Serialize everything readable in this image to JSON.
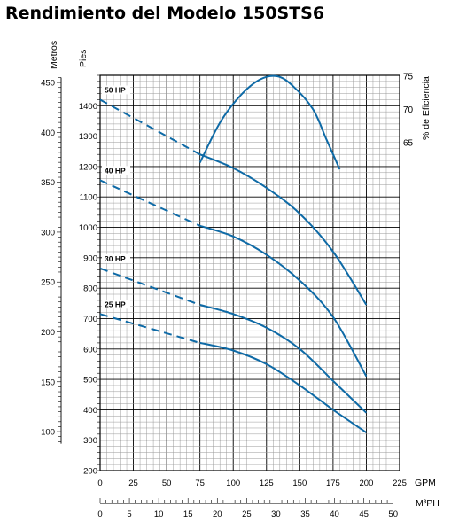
{
  "chart_data": {
    "type": "line",
    "title": "Rendimiento del Modelo 150STS6",
    "left_axis_labels": {
      "meters": "Metros",
      "feet": "Pies"
    },
    "right_axis_label": "% de Eficiencia",
    "x_labels": {
      "gpm": "GPM",
      "m3ph": "M³PH"
    },
    "x_gpm_range": [
      0,
      225
    ],
    "x_gpm_ticks": [
      0,
      25,
      50,
      75,
      100,
      125,
      150,
      175,
      200,
      225
    ],
    "x_m3ph_ticks": [
      0,
      5,
      10,
      15,
      20,
      25,
      30,
      35,
      40,
      45,
      50
    ],
    "y_feet_range": [
      200,
      1500
    ],
    "y_feet_ticks": [
      200,
      300,
      400,
      500,
      600,
      700,
      800,
      900,
      1000,
      1100,
      1200,
      1300,
      1400
    ],
    "y_meters_ticks": [
      100,
      150,
      200,
      250,
      300,
      350,
      400,
      450
    ],
    "efficiency_ticks": [
      65,
      70,
      75
    ],
    "grid": true,
    "series": [
      {
        "name": "50 HP",
        "dashed": [
          [
            0,
            1420
          ],
          [
            75,
            1240
          ]
        ],
        "solid": [
          [
            75,
            1240
          ],
          [
            100,
            1195
          ],
          [
            125,
            1130
          ],
          [
            150,
            1045
          ],
          [
            175,
            920
          ],
          [
            200,
            745
          ]
        ]
      },
      {
        "name": "40 HP",
        "dashed": [
          [
            0,
            1155
          ],
          [
            75,
            1005
          ]
        ],
        "solid": [
          [
            75,
            1005
          ],
          [
            100,
            970
          ],
          [
            125,
            910
          ],
          [
            150,
            825
          ],
          [
            175,
            705
          ],
          [
            200,
            510
          ]
        ]
      },
      {
        "name": "30 HP",
        "dashed": [
          [
            0,
            865
          ],
          [
            75,
            745
          ]
        ],
        "solid": [
          [
            75,
            745
          ],
          [
            100,
            715
          ],
          [
            125,
            670
          ],
          [
            150,
            600
          ],
          [
            175,
            495
          ],
          [
            200,
            390
          ]
        ]
      },
      {
        "name": "25 HP",
        "dashed": [
          [
            0,
            715
          ],
          [
            75,
            620
          ]
        ],
        "solid": [
          [
            75,
            620
          ],
          [
            100,
            595
          ],
          [
            125,
            550
          ],
          [
            150,
            480
          ],
          [
            175,
            400
          ],
          [
            200,
            325
          ]
        ]
      }
    ],
    "efficiency_curve": {
      "name": "% de Eficiencia",
      "points": [
        [
          75,
          62
        ],
        [
          90,
          68
        ],
        [
          105,
          72
        ],
        [
          120,
          74.5
        ],
        [
          133,
          75
        ],
        [
          145,
          73.5
        ],
        [
          160,
          70
        ],
        [
          170,
          65.5
        ],
        [
          180,
          61
        ]
      ]
    }
  }
}
